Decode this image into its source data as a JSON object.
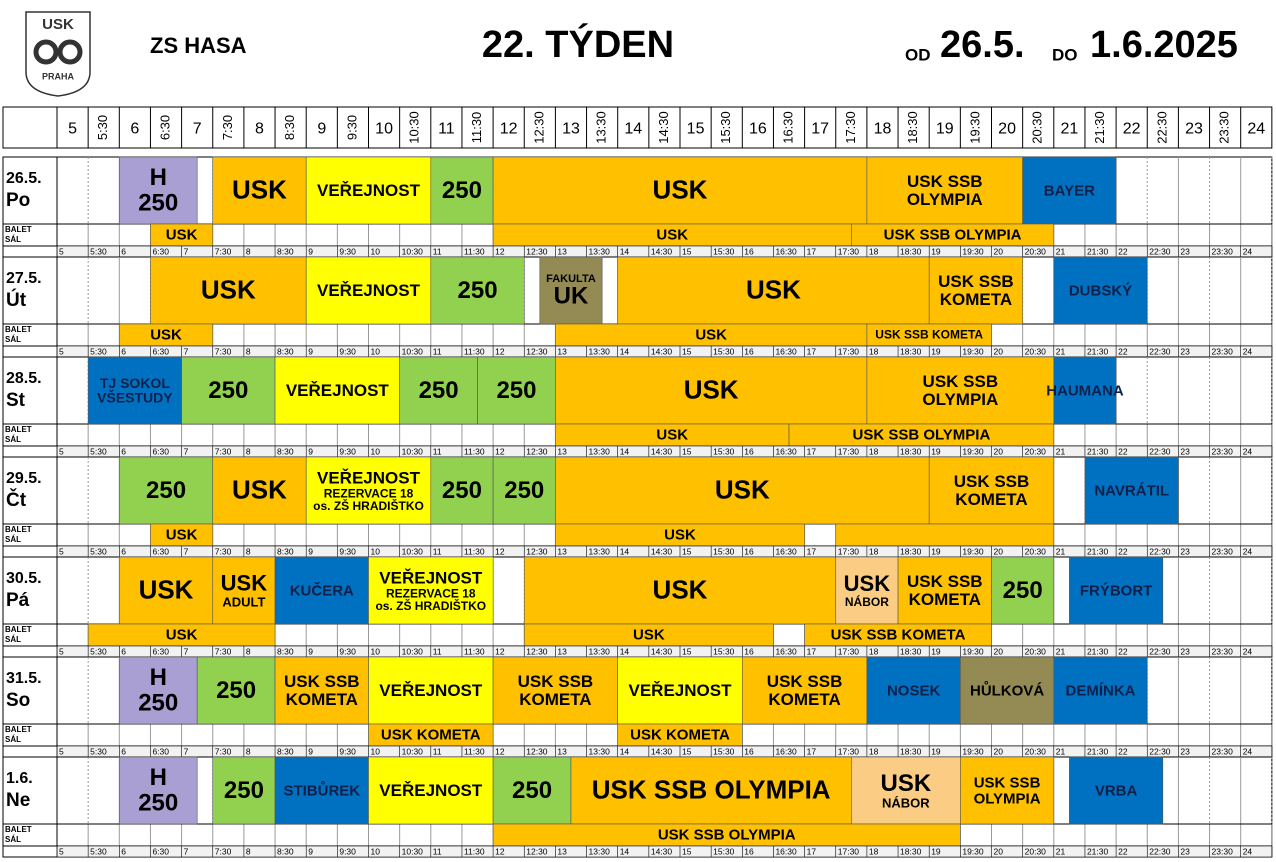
{
  "header": {
    "logo_top": "USK",
    "logo_bottom": "PRAHA",
    "venue": "ZS HASA",
    "week": "22. TÝDEN",
    "from_label": "OD",
    "from": "26.5.",
    "to_label": "DO",
    "to": "1.6.2025"
  },
  "times": [
    "5",
    "5:30",
    "6",
    "6:30",
    "7",
    "7:30",
    "8",
    "8:30",
    "9",
    "9:30",
    "10",
    "10:30",
    "11",
    "11:30",
    "12",
    "12:30",
    "13",
    "13:30",
    "14",
    "14:30",
    "15",
    "15:30",
    "16",
    "16:30",
    "17",
    "17:30",
    "18",
    "18:30",
    "19",
    "19:30",
    "20",
    "20:30",
    "21",
    "21:30",
    "22",
    "22:30",
    "23",
    "23:30",
    "24"
  ],
  "balet_label": [
    "BALET",
    "SÁL"
  ],
  "days": [
    {
      "date": "26.5.",
      "day": "Po",
      "blocks": [
        [
          "H",
          "250"
        ],
        [
          "USK"
        ],
        [
          "VEŘEJNOST"
        ],
        [
          "250"
        ],
        [
          "USK"
        ],
        [
          "USK SSB",
          "OLYMPIA"
        ],
        [
          "BAYER"
        ]
      ],
      "balet": [
        "USK",
        "USK",
        "USK SSB OLYMPIA"
      ]
    },
    {
      "date": "27.5.",
      "day": "Út",
      "blocks": [
        [
          "USK"
        ],
        [
          "VEŘEJNOST"
        ],
        [
          "250"
        ],
        [
          "FAKULTA",
          "UK"
        ],
        [
          "USK"
        ],
        [
          "USK SSB",
          "KOMETA"
        ],
        [
          "DUBSKÝ"
        ]
      ],
      "balet": [
        "USK",
        "USK",
        "USK SSB KOMETA"
      ]
    },
    {
      "date": "28.5.",
      "day": "St",
      "blocks": [
        [
          "TJ SOKOL",
          "VŠESTUDY"
        ],
        [
          "250"
        ],
        [
          "VEŘEJNOST"
        ],
        [
          "250"
        ],
        [
          "250"
        ],
        [
          "USK"
        ],
        [
          "USK SSB",
          "OLYMPIA"
        ],
        [
          "HAUMANA"
        ]
      ],
      "balet": [
        "USK",
        "USK SSB OLYMPIA"
      ]
    },
    {
      "date": "29.5.",
      "day": "Čt",
      "blocks": [
        [
          "250"
        ],
        [
          "USK"
        ],
        [
          "VEŘEJNOST",
          "REZERVACE 18",
          "os. ZŠ HRADIŠTKO"
        ],
        [
          "250"
        ],
        [
          "250"
        ],
        [
          "USK"
        ],
        [
          "USK SSB",
          "KOMETA"
        ],
        [
          "NAVRÁTIL"
        ]
      ],
      "balet": [
        "USK",
        "USK"
      ]
    },
    {
      "date": "30.5.",
      "day": "Pá",
      "blocks": [
        [
          "USK"
        ],
        [
          "USK",
          "ADULT"
        ],
        [
          "KUČERA"
        ],
        [
          "VEŘEJNOST",
          "REZERVACE 18",
          "os. ZŠ HRADIŠTKO"
        ],
        [
          "USK"
        ],
        [
          "USK",
          "NÁBOR"
        ],
        [
          "USK SSB",
          "KOMETA"
        ],
        [
          "250"
        ],
        [
          "FRÝBORT"
        ]
      ],
      "balet": [
        "USK",
        "USK",
        "USK SSB KOMETA"
      ]
    },
    {
      "date": "31.5.",
      "day": "So",
      "blocks": [
        [
          "H",
          "250"
        ],
        [
          "250"
        ],
        [
          "USK SSB",
          "KOMETA"
        ],
        [
          "VEŘEJNOST"
        ],
        [
          "USK SSB",
          "KOMETA"
        ],
        [
          "VEŘEJNOST"
        ],
        [
          "USK SSB",
          "KOMETA"
        ],
        [
          "NOSEK"
        ],
        [
          "HŮLKOVÁ"
        ],
        [
          "DEMÍNKA"
        ]
      ],
      "balet": [
        "USK KOMETA",
        "USK KOMETA"
      ]
    },
    {
      "date": "1.6.",
      "day": "Ne",
      "blocks": [
        [
          "H",
          "250"
        ],
        [
          "250"
        ],
        [
          "STIBŮREK"
        ],
        [
          "VEŘEJNOST"
        ],
        [
          "250"
        ],
        [
          "USK SSB OLYMPIA"
        ],
        [
          "USK",
          "NÁBOR"
        ],
        [
          "USK SSB",
          "OLYMPIA"
        ],
        [
          "VRBA"
        ]
      ],
      "balet": [
        "USK SSB OLYMPIA"
      ]
    }
  ]
}
